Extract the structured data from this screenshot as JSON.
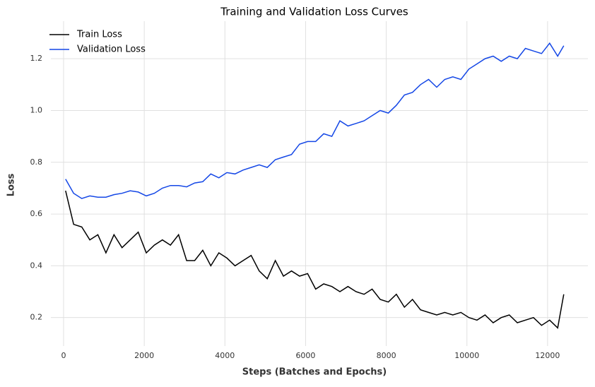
{
  "chart_data": {
    "type": "line",
    "title": "Training and Validation Loss Curves",
    "x_label": "Steps (Batches and Epochs)",
    "y_label": "Loss",
    "x": [
      50,
      250,
      450,
      650,
      850,
      1050,
      1250,
      1450,
      1650,
      1850,
      2050,
      2250,
      2450,
      2650,
      2850,
      3050,
      3250,
      3450,
      3650,
      3850,
      4050,
      4250,
      4450,
      4650,
      4850,
      5050,
      5250,
      5450,
      5650,
      5850,
      6050,
      6250,
      6450,
      6650,
      6850,
      7050,
      7250,
      7450,
      7650,
      7850,
      8050,
      8250,
      8450,
      8650,
      8850,
      9050,
      9250,
      9450,
      9650,
      9850,
      10050,
      10250,
      10450,
      10650,
      10850,
      11050,
      11250,
      11450,
      11650,
      11850,
      12050,
      12250,
      12400
    ],
    "series": [
      {
        "name": "Train Loss",
        "color": "#000000",
        "values": [
          0.69,
          0.56,
          0.55,
          0.5,
          0.52,
          0.45,
          0.52,
          0.47,
          0.5,
          0.53,
          0.45,
          0.48,
          0.5,
          0.48,
          0.52,
          0.42,
          0.42,
          0.46,
          0.4,
          0.45,
          0.43,
          0.4,
          0.42,
          0.44,
          0.38,
          0.35,
          0.42,
          0.36,
          0.38,
          0.36,
          0.37,
          0.31,
          0.33,
          0.32,
          0.3,
          0.32,
          0.3,
          0.29,
          0.31,
          0.27,
          0.26,
          0.29,
          0.24,
          0.27,
          0.23,
          0.22,
          0.21,
          0.22,
          0.21,
          0.22,
          0.2,
          0.19,
          0.21,
          0.18,
          0.2,
          0.21,
          0.18,
          0.19,
          0.2,
          0.17,
          0.19,
          0.16,
          0.29
        ]
      },
      {
        "name": "Validation Loss",
        "color": "#1447e6",
        "values": [
          0.735,
          0.68,
          0.66,
          0.67,
          0.665,
          0.665,
          0.675,
          0.68,
          0.69,
          0.685,
          0.67,
          0.68,
          0.7,
          0.71,
          0.71,
          0.705,
          0.72,
          0.725,
          0.755,
          0.74,
          0.76,
          0.755,
          0.77,
          0.78,
          0.79,
          0.78,
          0.81,
          0.82,
          0.83,
          0.87,
          0.88,
          0.88,
          0.91,
          0.9,
          0.96,
          0.94,
          0.95,
          0.96,
          0.98,
          1.0,
          0.99,
          1.02,
          1.06,
          1.07,
          1.1,
          1.12,
          1.09,
          1.12,
          1.13,
          1.12,
          1.16,
          1.18,
          1.2,
          1.21,
          1.19,
          1.21,
          1.2,
          1.24,
          1.23,
          1.22,
          1.26,
          1.21,
          1.25
        ]
      }
    ],
    "xlim": [
      -315,
      13000
    ],
    "ylim": [
      0.09,
      1.345
    ],
    "xticks": [
      0,
      2000,
      4000,
      6000,
      8000,
      10000,
      12000
    ],
    "yticks": [
      0.2,
      0.4,
      0.6,
      0.8,
      {
        "value": 1,
        "label": "1.0"
      },
      1.2
    ],
    "grid": true,
    "legend": "upper left"
  }
}
